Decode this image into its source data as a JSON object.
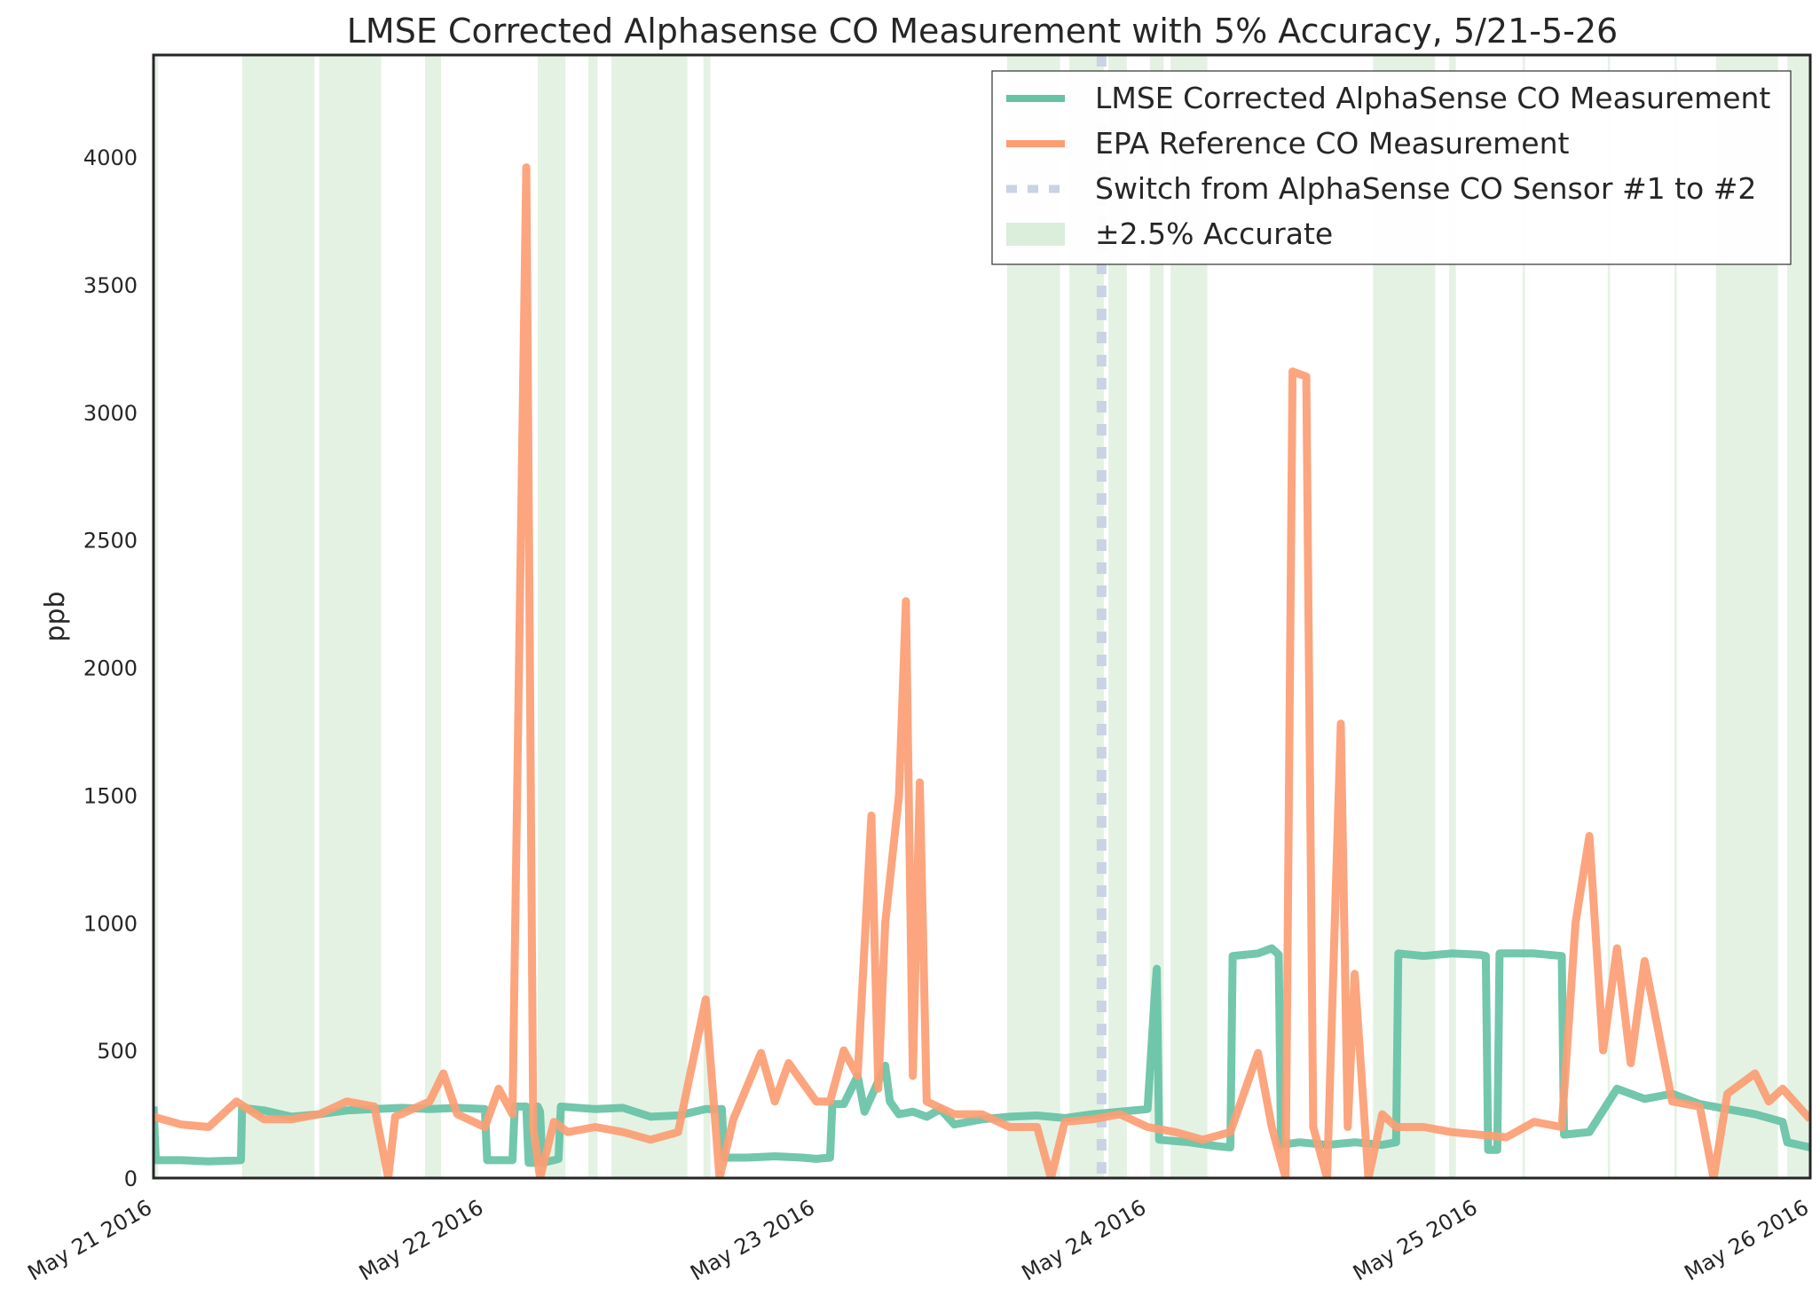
{
  "chart_data": {
    "type": "line",
    "title": "LMSE Corrected Alphasense CO Measurement with 5% Accuracy, 5/21-5-26",
    "xlabel": "",
    "ylabel": "ppb",
    "xlim": [
      "2016-05-21 00:00",
      "2016-05-26 00:00"
    ],
    "ylim": [
      0,
      4400
    ],
    "y_ticks": [
      0,
      500,
      1000,
      1500,
      2000,
      2500,
      3000,
      3500,
      4000
    ],
    "x_ticks": [
      "May 21 2016",
      "May 22 2016",
      "May 23 2016",
      "May 24 2016",
      "May 25 2016",
      "May 26 2016"
    ],
    "x_tick_values": [
      "2016-05-21 00:00",
      "2016-05-22 00:00",
      "2016-05-23 00:00",
      "2016-05-24 00:00",
      "2016-05-25 00:00",
      "2016-05-26 00:00"
    ],
    "grid": false,
    "legend_position": "upper-right",
    "legend": [
      {
        "label": "LMSE Corrected AlphaSense CO Measurement",
        "style": "line",
        "color": "#66c2a5"
      },
      {
        "label": "EPA Reference CO Measurement",
        "style": "line",
        "color": "#fc9d73"
      },
      {
        "label": "Switch from AlphaSense CO Sensor #1 to #2",
        "style": "dashed",
        "color": "#c9d3e3"
      },
      {
        "label": "±2.5% Accurate",
        "style": "band",
        "color": "#dbeedb"
      }
    ],
    "accurate_bands": [
      [
        "2016-05-21 00:00",
        "2016-05-21 00:20"
      ],
      [
        "2016-05-21 06:25",
        "2016-05-21 11:40"
      ],
      [
        "2016-05-21 12:00",
        "2016-05-21 16:30"
      ],
      [
        "2016-05-21 19:40",
        "2016-05-21 20:50"
      ],
      [
        "2016-05-22 03:50",
        "2016-05-22 05:50"
      ],
      [
        "2016-05-22 07:30",
        "2016-05-22 08:10"
      ],
      [
        "2016-05-22 09:10",
        "2016-05-22 14:40"
      ],
      [
        "2016-05-22 15:50",
        "2016-05-22 16:20"
      ],
      [
        "2016-05-23 13:50",
        "2016-05-23 17:40"
      ],
      [
        "2016-05-23 18:20",
        "2016-05-23 20:50"
      ],
      [
        "2016-05-23 21:10",
        "2016-05-23 22:30"
      ],
      [
        "2016-05-24 00:10",
        "2016-05-24 01:10"
      ],
      [
        "2016-05-24 01:40",
        "2016-05-24 04:20"
      ],
      [
        "2016-05-24 16:20",
        "2016-05-24 20:50"
      ],
      [
        "2016-05-24 21:50",
        "2016-05-24 22:20"
      ],
      [
        "2016-05-25 03:10",
        "2016-05-25 03:20"
      ],
      [
        "2016-05-25 09:20",
        "2016-05-25 09:30"
      ],
      [
        "2016-05-25 14:10",
        "2016-05-25 14:20"
      ],
      [
        "2016-05-25 17:10",
        "2016-05-25 21:40"
      ],
      [
        "2016-05-25 22:20",
        "2016-05-26 00:00"
      ]
    ],
    "switch_time": "2016-05-23 20:40",
    "series": [
      {
        "name": "LMSE Corrected AlphaSense CO Measurement",
        "color": "#66c2a5",
        "points": [
          [
            "2016-05-21 00:00",
            280
          ],
          [
            "2016-05-21 00:10",
            70
          ],
          [
            "2016-05-21 02:00",
            70
          ],
          [
            "2016-05-21 04:00",
            65
          ],
          [
            "2016-05-21 06:20",
            70
          ],
          [
            "2016-05-21 06:25",
            275
          ],
          [
            "2016-05-21 08:00",
            265
          ],
          [
            "2016-05-21 10:00",
            240
          ],
          [
            "2016-05-21 12:00",
            250
          ],
          [
            "2016-05-21 14:00",
            265
          ],
          [
            "2016-05-21 16:00",
            270
          ],
          [
            "2016-05-21 18:00",
            275
          ],
          [
            "2016-05-21 20:00",
            270
          ],
          [
            "2016-05-21 22:00",
            275
          ],
          [
            "2016-05-22 00:00",
            270
          ],
          [
            "2016-05-22 00:10",
            70
          ],
          [
            "2016-05-22 02:00",
            70
          ],
          [
            "2016-05-22 02:10",
            280
          ],
          [
            "2016-05-22 03:00",
            280
          ],
          [
            "2016-05-22 03:10",
            60
          ],
          [
            "2016-05-22 03:40",
            60
          ],
          [
            "2016-05-22 03:50",
            280
          ],
          [
            "2016-05-22 04:00",
            260
          ],
          [
            "2016-05-22 04:10",
            60
          ],
          [
            "2016-05-22 05:00",
            70
          ],
          [
            "2016-05-22 05:20",
            75
          ],
          [
            "2016-05-22 05:30",
            280
          ],
          [
            "2016-05-22 08:00",
            270
          ],
          [
            "2016-05-22 10:00",
            275
          ],
          [
            "2016-05-22 12:00",
            240
          ],
          [
            "2016-05-22 14:00",
            245
          ],
          [
            "2016-05-22 16:00",
            270
          ],
          [
            "2016-05-22 17:10",
            270
          ],
          [
            "2016-05-22 17:20",
            80
          ],
          [
            "2016-05-22 19:00",
            80
          ],
          [
            "2016-05-22 21:00",
            85
          ],
          [
            "2016-05-22 23:00",
            80
          ],
          [
            "2016-05-23 00:00",
            75
          ],
          [
            "2016-05-23 01:00",
            80
          ],
          [
            "2016-05-23 01:10",
            290
          ],
          [
            "2016-05-23 02:00",
            290
          ],
          [
            "2016-05-23 03:00",
            400
          ],
          [
            "2016-05-23 03:30",
            260
          ],
          [
            "2016-05-23 05:00",
            440
          ],
          [
            "2016-05-23 05:20",
            300
          ],
          [
            "2016-05-23 06:00",
            250
          ],
          [
            "2016-05-23 07:00",
            260
          ],
          [
            "2016-05-23 08:00",
            240
          ],
          [
            "2016-05-23 09:00",
            270
          ],
          [
            "2016-05-23 10:00",
            210
          ],
          [
            "2016-05-23 12:00",
            230
          ],
          [
            "2016-05-23 14:00",
            240
          ],
          [
            "2016-05-23 16:00",
            245
          ],
          [
            "2016-05-23 18:00",
            235
          ],
          [
            "2016-05-23 20:00",
            250
          ],
          [
            "2016-05-23 22:00",
            260
          ],
          [
            "2016-05-24 00:00",
            270
          ],
          [
            "2016-05-24 00:30",
            700
          ],
          [
            "2016-05-24 00:40",
            820
          ],
          [
            "2016-05-24 00:50",
            150
          ],
          [
            "2016-05-24 03:00",
            140
          ],
          [
            "2016-05-24 05:00",
            125
          ],
          [
            "2016-05-24 06:00",
            120
          ],
          [
            "2016-05-24 06:10",
            870
          ],
          [
            "2016-05-24 08:00",
            880
          ],
          [
            "2016-05-24 09:00",
            900
          ],
          [
            "2016-05-24 09:30",
            875
          ],
          [
            "2016-05-24 09:40",
            130
          ],
          [
            "2016-05-24 11:00",
            140
          ],
          [
            "2016-05-24 13:00",
            130
          ],
          [
            "2016-05-24 15:00",
            140
          ],
          [
            "2016-05-24 17:00",
            130
          ],
          [
            "2016-05-24 18:00",
            140
          ],
          [
            "2016-05-24 18:10",
            880
          ],
          [
            "2016-05-24 20:00",
            870
          ],
          [
            "2016-05-24 22:00",
            880
          ],
          [
            "2016-05-25 00:00",
            875
          ],
          [
            "2016-05-25 00:30",
            870
          ],
          [
            "2016-05-25 00:40",
            110
          ],
          [
            "2016-05-25 01:20",
            110
          ],
          [
            "2016-05-25 01:30",
            880
          ],
          [
            "2016-05-25 04:00",
            880
          ],
          [
            "2016-05-25 06:00",
            870
          ],
          [
            "2016-05-25 06:10",
            170
          ],
          [
            "2016-05-25 08:00",
            180
          ],
          [
            "2016-05-25 10:00",
            350
          ],
          [
            "2016-05-25 12:00",
            310
          ],
          [
            "2016-05-25 14:00",
            330
          ],
          [
            "2016-05-25 16:00",
            290
          ],
          [
            "2016-05-25 18:00",
            270
          ],
          [
            "2016-05-25 20:00",
            250
          ],
          [
            "2016-05-25 22:00",
            220
          ],
          [
            "2016-05-25 22:20",
            140
          ],
          [
            "2016-05-26 00:00",
            120
          ]
        ]
      },
      {
        "name": "EPA Reference CO Measurement",
        "color": "#fc9d73",
        "points": [
          [
            "2016-05-21 00:00",
            240
          ],
          [
            "2016-05-21 02:00",
            210
          ],
          [
            "2016-05-21 04:00",
            200
          ],
          [
            "2016-05-21 06:00",
            300
          ],
          [
            "2016-05-21 08:00",
            230
          ],
          [
            "2016-05-21 10:00",
            230
          ],
          [
            "2016-05-21 12:00",
            250
          ],
          [
            "2016-05-21 14:00",
            300
          ],
          [
            "2016-05-21 16:00",
            280
          ],
          [
            "2016-05-21 17:00",
            0
          ],
          [
            "2016-05-21 17:30",
            240
          ],
          [
            "2016-05-21 20:00",
            300
          ],
          [
            "2016-05-21 21:00",
            410
          ],
          [
            "2016-05-21 22:00",
            250
          ],
          [
            "2016-05-22 00:00",
            200
          ],
          [
            "2016-05-22 01:00",
            350
          ],
          [
            "2016-05-22 02:00",
            250
          ],
          [
            "2016-05-22 03:00",
            3960
          ],
          [
            "2016-05-22 03:30",
            200
          ],
          [
            "2016-05-22 04:00",
            0
          ],
          [
            "2016-05-22 05:00",
            220
          ],
          [
            "2016-05-22 06:00",
            180
          ],
          [
            "2016-05-22 08:00",
            200
          ],
          [
            "2016-05-22 10:00",
            180
          ],
          [
            "2016-05-22 12:00",
            150
          ],
          [
            "2016-05-22 14:00",
            180
          ],
          [
            "2016-05-22 16:00",
            700
          ],
          [
            "2016-05-22 17:00",
            0
          ],
          [
            "2016-05-22 18:00",
            230
          ],
          [
            "2016-05-22 20:00",
            490
          ],
          [
            "2016-05-22 21:00",
            300
          ],
          [
            "2016-05-22 22:00",
            450
          ],
          [
            "2016-05-23 00:00",
            300
          ],
          [
            "2016-05-23 01:00",
            300
          ],
          [
            "2016-05-23 02:00",
            500
          ],
          [
            "2016-05-23 03:00",
            400
          ],
          [
            "2016-05-23 04:00",
            1420
          ],
          [
            "2016-05-23 04:30",
            350
          ],
          [
            "2016-05-23 05:00",
            1000
          ],
          [
            "2016-05-23 06:00",
            1500
          ],
          [
            "2016-05-23 06:30",
            2260
          ],
          [
            "2016-05-23 07:00",
            400
          ],
          [
            "2016-05-23 07:30",
            1550
          ],
          [
            "2016-05-23 08:00",
            300
          ],
          [
            "2016-05-23 10:00",
            250
          ],
          [
            "2016-05-23 12:00",
            250
          ],
          [
            "2016-05-23 14:00",
            200
          ],
          [
            "2016-05-23 16:00",
            200
          ],
          [
            "2016-05-23 17:00",
            0
          ],
          [
            "2016-05-23 18:00",
            220
          ],
          [
            "2016-05-23 20:00",
            230
          ],
          [
            "2016-05-23 22:00",
            250
          ],
          [
            "2016-05-24 00:00",
            200
          ],
          [
            "2016-05-24 02:00",
            180
          ],
          [
            "2016-05-24 04:00",
            150
          ],
          [
            "2016-05-24 06:00",
            180
          ],
          [
            "2016-05-24 08:00",
            490
          ],
          [
            "2016-05-24 09:00",
            200
          ],
          [
            "2016-05-24 10:00",
            0
          ],
          [
            "2016-05-24 10:30",
            3160
          ],
          [
            "2016-05-24 11:30",
            3140
          ],
          [
            "2016-05-24 12:00",
            200
          ],
          [
            "2016-05-24 13:00",
            0
          ],
          [
            "2016-05-24 14:00",
            1780
          ],
          [
            "2016-05-24 14:30",
            200
          ],
          [
            "2016-05-24 15:00",
            800
          ],
          [
            "2016-05-24 16:00",
            0
          ],
          [
            "2016-05-24 17:00",
            250
          ],
          [
            "2016-05-24 18:00",
            200
          ],
          [
            "2016-05-24 20:00",
            200
          ],
          [
            "2016-05-24 22:00",
            180
          ],
          [
            "2016-05-25 00:00",
            170
          ],
          [
            "2016-05-25 02:00",
            160
          ],
          [
            "2016-05-25 04:00",
            220
          ],
          [
            "2016-05-25 06:00",
            200
          ],
          [
            "2016-05-25 07:00",
            1000
          ],
          [
            "2016-05-25 08:00",
            1340
          ],
          [
            "2016-05-25 09:00",
            500
          ],
          [
            "2016-05-25 10:00",
            900
          ],
          [
            "2016-05-25 11:00",
            450
          ],
          [
            "2016-05-25 12:00",
            850
          ],
          [
            "2016-05-25 14:00",
            300
          ],
          [
            "2016-05-25 16:00",
            280
          ],
          [
            "2016-05-25 17:00",
            0
          ],
          [
            "2016-05-25 18:00",
            330
          ],
          [
            "2016-05-25 20:00",
            410
          ],
          [
            "2016-05-25 21:00",
            300
          ],
          [
            "2016-05-25 22:00",
            350
          ],
          [
            "2016-05-26 00:00",
            230
          ]
        ]
      }
    ]
  }
}
